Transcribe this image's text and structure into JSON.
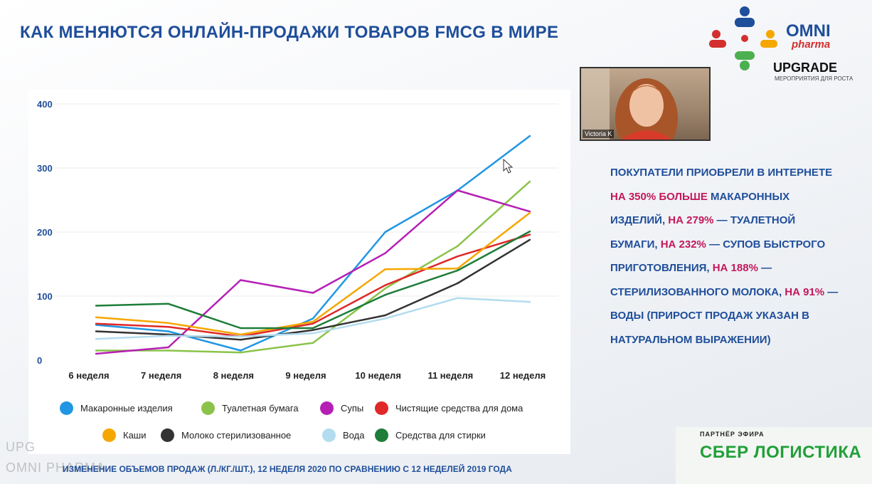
{
  "slide": {
    "title": "КАК МЕНЯЮТСЯ ОНЛАЙН-ПРОДАЖИ ТОВАРОВ FMCG В МИРЕ",
    "footnote": "ИЗМЕНЕНИЕ ОБЪЕМОВ ПРОДАЖ (Л./КГ./ШТ.), 12 НЕДЕЛЯ 2020 ПО СРАВНЕНИЮ С 12 НЕДЕЛЕЙ 2019 ГОДА"
  },
  "logo": {
    "brand": "OMNI",
    "script": "pharma",
    "event": "UPGRADE",
    "tagline": "МЕРОПРИЯТИЯ ДЛЯ РОСТА"
  },
  "webcam": {
    "participant_name": "Victoria K"
  },
  "insight": {
    "segments": [
      {
        "text": "ПОКУПАТЕЛИ ПРИОБРЕЛИ В ИНТЕРНЕТЕ ",
        "highlight": false
      },
      {
        "text": "НА 350% БОЛЬШЕ",
        "highlight": true
      },
      {
        "text": " МАКАРОННЫХ ИЗДЕЛИЙ, ",
        "highlight": false
      },
      {
        "text": "НА 279%",
        "highlight": true
      },
      {
        "text": " — ТУАЛЕТНОЙ БУМАГИ, ",
        "highlight": false
      },
      {
        "text": "НА 232%",
        "highlight": true
      },
      {
        "text": " — СУПОВ БЫСТРОГО ПРИГОТОВЛЕНИЯ, ",
        "highlight": false
      },
      {
        "text": "НА 188%",
        "highlight": true
      },
      {
        "text": " — СТЕРИЛИЗОВАННОГО МОЛОКА, ",
        "highlight": false
      },
      {
        "text": "НА 91%",
        "highlight": true
      },
      {
        "text": " — ВОДЫ (ПРИРОСТ ПРОДАЖ УКАЗАН В НАТУРАЛЬНОМ ВЫРАЖЕНИИ)",
        "highlight": false
      }
    ]
  },
  "watermark": {
    "line1": "UPG",
    "line2": "OMNI PHARMA"
  },
  "partner": {
    "label": "ПАРТНЁР ЭФИРА",
    "name": "СБЕР ЛОГИСТИКА"
  },
  "colors": {
    "title": "#1f4e9a",
    "highlight": "#c2185b",
    "partner": "#21a038"
  },
  "chart_data": {
    "type": "line",
    "title": "",
    "xlabel": "",
    "ylabel": "",
    "ylim": [
      0,
      400
    ],
    "yticks": [
      0,
      100,
      200,
      300,
      400
    ],
    "grid": "horizontal",
    "legend_position": "bottom",
    "categories": [
      "6 неделя",
      "7 неделя",
      "8 неделя",
      "9 неделя",
      "10 неделя",
      "11 неделя",
      "12 неделя"
    ],
    "series": [
      {
        "name": "Макаронные изделия",
        "color": "#2196e3",
        "values": [
          55,
          45,
          15,
          65,
          200,
          265,
          350
        ]
      },
      {
        "name": "Туалетная бумага",
        "color": "#8bc34a",
        "values": [
          15,
          15,
          12,
          27,
          112,
          178,
          279
        ]
      },
      {
        "name": "Супы",
        "color": "#b51fb5",
        "values": [
          10,
          20,
          125,
          105,
          167,
          265,
          232
        ]
      },
      {
        "name": "Чистящие средства для дома",
        "color": "#e02828",
        "values": [
          57,
          52,
          37,
          57,
          117,
          162,
          196
        ]
      },
      {
        "name": "Каши",
        "color": "#f5a700",
        "values": [
          67,
          58,
          40,
          60,
          142,
          143,
          230
        ]
      },
      {
        "name": "Молоко стерилизованное",
        "color": "#333333",
        "values": [
          45,
          40,
          32,
          47,
          70,
          120,
          188
        ]
      },
      {
        "name": "Вода",
        "color": "#b3dcef",
        "values": [
          33,
          38,
          37,
          42,
          65,
          97,
          91
        ]
      },
      {
        "name": "Средства для стирки",
        "color": "#1e7d3a",
        "values": [
          85,
          88,
          50,
          50,
          102,
          140,
          201
        ]
      }
    ]
  }
}
